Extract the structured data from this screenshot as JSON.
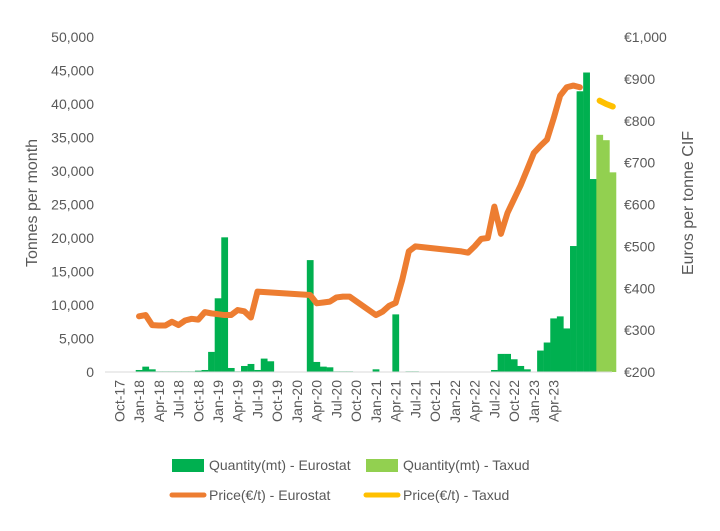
{
  "chart_data": {
    "type": "bar+line",
    "title": "",
    "left_axis": {
      "label": "Tonnes per month",
      "min": 0,
      "max": 50000,
      "ticks": [
        "0",
        "5,000",
        "10,000",
        "15,000",
        "20,000",
        "25,000",
        "30,000",
        "35,000",
        "40,000",
        "45,000",
        "50,000"
      ]
    },
    "right_axis": {
      "label": "Euros per tonne CIF",
      "min": 200,
      "max": 1000,
      "ticks": [
        "€200",
        "€300",
        "€400",
        "€500",
        "€600",
        "€700",
        "€800",
        "€900",
        "€1,000"
      ]
    },
    "x_tick_labels": [
      "Oct-17",
      "Jan-18",
      "Apr-18",
      "Jul-18",
      "Oct-18",
      "Jan-19",
      "Apr-19",
      "Jul-19",
      "Oct-19",
      "Jan-20",
      "Apr-20",
      "Jul-20",
      "Oct-20",
      "Jan-21",
      "Apr-21",
      "Jul-21",
      "Oct-21",
      "Jan-22",
      "Apr-22",
      "Jul-22",
      "Oct-22",
      "Jan-23",
      "Apr-23"
    ],
    "x_first_month": "Oct-17",
    "grid": false,
    "legend_position": "bottom",
    "colors": {
      "quantity_eurostat": "#00B050",
      "quantity_taxud": "#92D050",
      "price_eurostat": "#ED7D31",
      "price_taxud": "#FFC000",
      "axis_text": "#595959",
      "axis_line": "#D9D9D9"
    },
    "series": [
      {
        "name": "Quantity(mt) - Eurostat",
        "kind": "bar",
        "axis": "left",
        "values": [
          0,
          0,
          0,
          300,
          800,
          400,
          100,
          100,
          100,
          100,
          100,
          100,
          200,
          300,
          3000,
          11000,
          20100,
          600,
          100,
          900,
          1200,
          300,
          2000,
          1600,
          0,
          0,
          0,
          0,
          0,
          16700,
          1500,
          800,
          700,
          100,
          100,
          100,
          0,
          0,
          0,
          400,
          0,
          0,
          8600,
          0,
          100,
          100,
          0,
          0,
          0,
          0,
          0,
          0,
          0,
          0,
          0,
          0,
          0,
          300,
          2700,
          2700,
          1900,
          900,
          400,
          0,
          3200,
          4400,
          8000,
          8300,
          6500,
          18800,
          41900,
          44700,
          28800,
          0,
          0,
          0
        ]
      },
      {
        "name": "Quantity(mt) - Taxud",
        "kind": "bar",
        "axis": "left",
        "values": [
          0,
          0,
          0,
          0,
          0,
          0,
          0,
          0,
          0,
          0,
          0,
          0,
          0,
          0,
          0,
          0,
          0,
          0,
          0,
          0,
          0,
          0,
          0,
          0,
          0,
          0,
          0,
          0,
          0,
          0,
          0,
          0,
          0,
          0,
          0,
          0,
          0,
          0,
          0,
          0,
          0,
          0,
          0,
          0,
          0,
          0,
          0,
          0,
          0,
          0,
          0,
          0,
          0,
          0,
          0,
          0,
          0,
          0,
          0,
          0,
          0,
          0,
          0,
          0,
          0,
          0,
          0,
          0,
          0,
          0,
          0,
          0,
          0,
          35400,
          34600,
          29800
        ]
      },
      {
        "name": "Price(€/t) - Eurostat",
        "kind": "line",
        "axis": "right",
        "points": [
          [
            3,
            333
          ],
          [
            4,
            336
          ],
          [
            5,
            312
          ],
          [
            6,
            311
          ],
          [
            7,
            311
          ],
          [
            8,
            320
          ],
          [
            9,
            312
          ],
          [
            10,
            323
          ],
          [
            11,
            327
          ],
          [
            12,
            325
          ],
          [
            13,
            343
          ],
          [
            14,
            340
          ],
          [
            15,
            338
          ],
          [
            16,
            336
          ],
          [
            17,
            336
          ],
          [
            18,
            348
          ],
          [
            19,
            345
          ],
          [
            20,
            330
          ],
          [
            21,
            392
          ],
          [
            29,
            384
          ],
          [
            30,
            364
          ],
          [
            31,
            366
          ],
          [
            32,
            368
          ],
          [
            33,
            378
          ],
          [
            34,
            380
          ],
          [
            35,
            380
          ],
          [
            39,
            336
          ],
          [
            40,
            344
          ],
          [
            41,
            358
          ],
          [
            42,
            365
          ],
          [
            43,
            420
          ],
          [
            44,
            488
          ],
          [
            45,
            500
          ],
          [
            52,
            488
          ],
          [
            53,
            485
          ],
          [
            54,
            500
          ],
          [
            55,
            518
          ],
          [
            56,
            520
          ],
          [
            57,
            595
          ],
          [
            58,
            530
          ],
          [
            59,
            580
          ],
          [
            61,
            646
          ],
          [
            62,
            684
          ],
          [
            63,
            723
          ],
          [
            64,
            740
          ],
          [
            65,
            755
          ],
          [
            66,
            805
          ],
          [
            67,
            860
          ],
          [
            68,
            880
          ],
          [
            69,
            884
          ],
          [
            70,
            880
          ]
        ]
      },
      {
        "name": "Price(€/t) - Taxud",
        "kind": "line",
        "axis": "right",
        "points": [
          [
            73,
            848
          ],
          [
            74,
            840
          ],
          [
            75,
            834
          ]
        ]
      }
    ]
  }
}
